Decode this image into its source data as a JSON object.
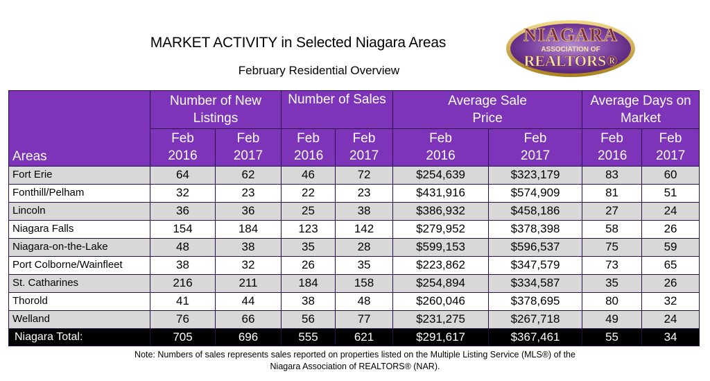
{
  "title": "MARKET ACTIVITY in Selected Niagara Areas",
  "subtitle": "February Residential Overview",
  "logo": {
    "line1": "NIAGARA",
    "line2": "ASSOCIATION OF",
    "line3": "REALTORS®",
    "colors": {
      "gold": "#c9a03c",
      "purple": "#6a2a8c",
      "maroon": "#6b1a2a"
    }
  },
  "table": {
    "group_headers": [
      "Number of New Listings",
      "Number of Sales",
      "Average Sale Price",
      "Average Days on Market"
    ],
    "areas_header": "Areas",
    "sub_headers": [
      "Feb 2016",
      "Feb 2017",
      "Feb 2016",
      "Feb 2017",
      "Feb 2016",
      "Feb 2017",
      "Feb 2016",
      "Feb 2017"
    ],
    "rows": [
      {
        "area": "Fort Erie",
        "values": [
          "64",
          "62",
          "46",
          "72",
          "$254,639",
          "$323,179",
          "83",
          "60"
        ]
      },
      {
        "area": "Fonthill/Pelham",
        "values": [
          "32",
          "23",
          "22",
          "23",
          "$431,916",
          "$574,909",
          "81",
          "51"
        ]
      },
      {
        "area": "Lincoln",
        "values": [
          "36",
          "36",
          "25",
          "38",
          "$386,932",
          "$458,186",
          "27",
          "24"
        ]
      },
      {
        "area": "Niagara Falls",
        "values": [
          "154",
          "184",
          "123",
          "142",
          "$279,952",
          "$378,398",
          "58",
          "26"
        ]
      },
      {
        "area": "Niagara-on-the-Lake",
        "values": [
          "48",
          "38",
          "35",
          "28",
          "$599,153",
          "$596,537",
          "75",
          "59"
        ]
      },
      {
        "area": "Port Colborne/Wainfleet",
        "values": [
          "38",
          "32",
          "26",
          "35",
          "$223,862",
          "$347,579",
          "73",
          "65"
        ]
      },
      {
        "area": "St. Catharines",
        "values": [
          "216",
          "211",
          "184",
          "158",
          "$254,894",
          "$334,587",
          "35",
          "26"
        ]
      },
      {
        "area": "Thorold",
        "values": [
          "41",
          "44",
          "38",
          "48",
          "$260,046",
          "$378,695",
          "80",
          "32"
        ]
      },
      {
        "area": "Welland",
        "values": [
          "76",
          "66",
          "56",
          "77",
          "$231,275",
          "$267,718",
          "49",
          "24"
        ]
      }
    ],
    "total": {
      "area": "Niagara Total:",
      "values": [
        "705",
        "696",
        "555",
        "621",
        "$291,617",
        "$367,461",
        "55",
        "34"
      ]
    },
    "colors": {
      "header_bg": "#7d34b8",
      "row_alt": "#d8d8d8",
      "total_bg": "#000000"
    }
  },
  "note": {
    "line1": "Note: Numbers of sales represents sales reported on properties listed on the Multiple Listing Service (MLS®) of the",
    "line2": "Niagara Association of REALTORS® (NAR)."
  }
}
